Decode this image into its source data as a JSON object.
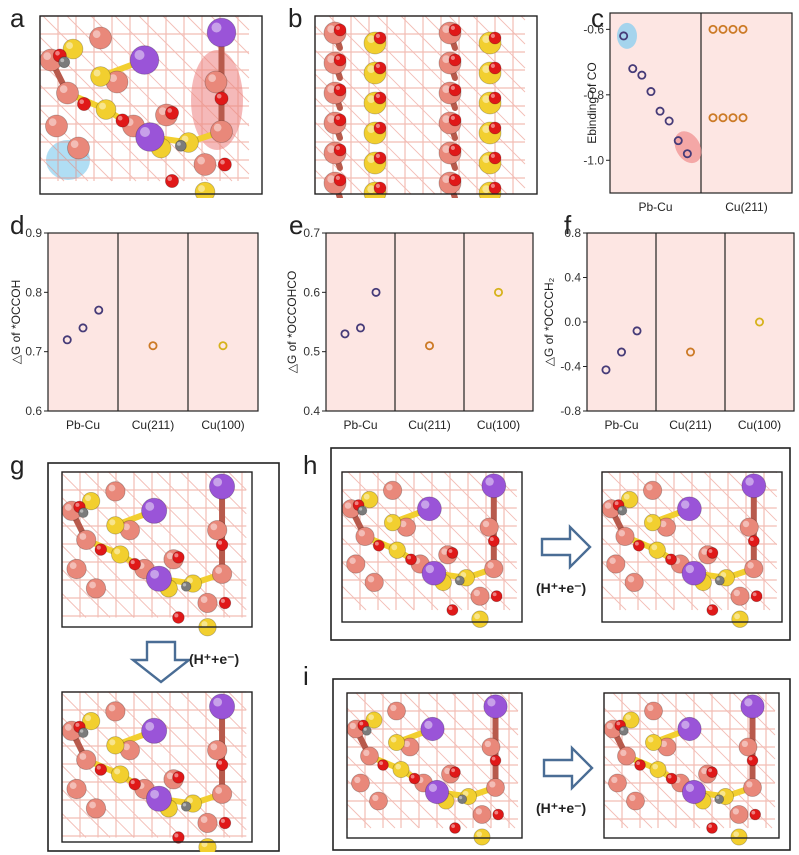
{
  "panels": {
    "a": "a",
    "b": "b",
    "c": "c",
    "d": "d",
    "e": "e",
    "f": "f",
    "g": "g",
    "h": "h",
    "i": "i"
  },
  "reaction_label": "(H⁺+e⁻)",
  "colors": {
    "copper": "#e9887a",
    "copper_dark": "#b85a4c",
    "sulfur": "#f2cf2f",
    "lead": "#9a54d8",
    "oxygen": "#e01818",
    "carbon": "#7b7b7b",
    "hydrogen": "#f2f2f2",
    "plot_bg": "#fde6e3",
    "marker_purple": "#463b78",
    "marker_orange": "#cc7a26",
    "marker_gold": "#d6b21c",
    "highlight_blue": "#8fd0ef",
    "highlight_red": "#ef8b8b",
    "arrow_blue": "#4a6d95"
  },
  "chart_data": [
    {
      "panel": "c",
      "type": "scatter",
      "ylabel": "Ebinding of CO",
      "ylim": [
        -1.1,
        -0.55
      ],
      "yticks": [
        -0.6,
        -0.8,
        -1.0
      ],
      "categories": [
        "Pb-Cu",
        "Cu(211)"
      ],
      "series": [
        {
          "category": "Pb-Cu",
          "values": [
            -0.62,
            -0.72,
            -0.74,
            -0.79,
            -0.85,
            -0.88,
            -0.94,
            -0.98
          ]
        },
        {
          "category": "Cu(211)",
          "values": [
            -0.6,
            -0.6,
            -0.6,
            -0.6,
            -0.87,
            -0.87,
            -0.87,
            -0.87
          ]
        }
      ]
    },
    {
      "panel": "d",
      "type": "scatter",
      "ylabel": "△G of *OCCOH",
      "ylim": [
        0.6,
        0.9
      ],
      "yticks": [
        0.6,
        0.7,
        0.8,
        0.9
      ],
      "categories": [
        "Pb-Cu",
        "Cu(211)",
        "Cu(100)"
      ],
      "series": [
        {
          "category": "Pb-Cu",
          "values": [
            0.72,
            0.74,
            0.77
          ]
        },
        {
          "category": "Cu(211)",
          "values": [
            0.71
          ]
        },
        {
          "category": "Cu(100)",
          "values": [
            0.71
          ]
        }
      ]
    },
    {
      "panel": "e",
      "type": "scatter",
      "ylabel": "△G of *OCCOHCO",
      "ylim": [
        0.4,
        0.7
      ],
      "yticks": [
        0.4,
        0.5,
        0.6,
        0.7
      ],
      "categories": [
        "Pb-Cu",
        "Cu(211)",
        "Cu(100)"
      ],
      "series": [
        {
          "category": "Pb-Cu",
          "values": [
            0.53,
            0.54,
            0.6
          ]
        },
        {
          "category": "Cu(211)",
          "values": [
            0.51
          ]
        },
        {
          "category": "Cu(100)",
          "values": [
            0.6
          ]
        }
      ]
    },
    {
      "panel": "f",
      "type": "scatter",
      "ylabel": "△G of *OCCCH₂",
      "ylim": [
        -0.8,
        0.8
      ],
      "yticks": [
        -0.8,
        -0.4,
        0.0,
        0.4,
        0.8
      ],
      "categories": [
        "Pb-Cu",
        "Cu(211)",
        "Cu(100)"
      ],
      "series": [
        {
          "category": "Pb-Cu",
          "values": [
            -0.43,
            -0.27,
            -0.08
          ]
        },
        {
          "category": "Cu(211)",
          "values": [
            -0.27
          ]
        },
        {
          "category": "Cu(100)",
          "values": [
            0.0
          ]
        }
      ]
    }
  ]
}
